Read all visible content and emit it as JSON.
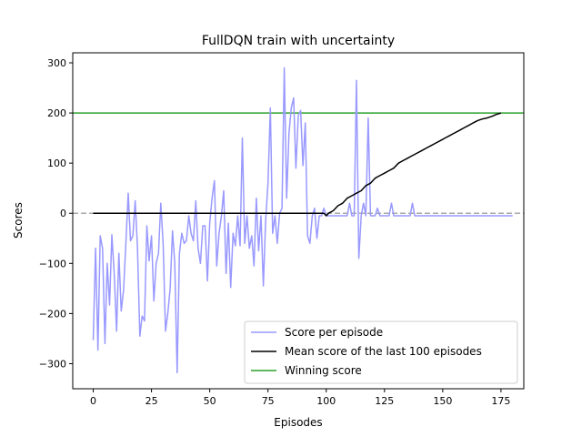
{
  "chart_data": {
    "type": "line",
    "title": "FullDQN train with uncertainty",
    "xlabel": "Episodes",
    "ylabel": "Scores",
    "xlim": [
      -8.8,
      184.8
    ],
    "ylim": [
      -350,
      320
    ],
    "xticks": [
      0,
      25,
      50,
      75,
      100,
      125,
      150,
      175
    ],
    "yticks": [
      -300,
      -200,
      -100,
      0,
      100,
      200,
      300
    ],
    "x_tick_labels": [
      "0",
      "25",
      "50",
      "75",
      "100",
      "125",
      "150",
      "175"
    ],
    "y_tick_labels": [
      "−300",
      "−200",
      "−100",
      "0",
      "100",
      "200",
      "300"
    ],
    "legend_position": "lower right",
    "series": [
      {
        "name": "Score per episode",
        "color": "#9999ff",
        "style": "solid",
        "x_start": 0,
        "values": [
          -253,
          -70,
          -273,
          -45,
          -70,
          -260,
          -100,
          -183,
          -43,
          -120,
          -235,
          -80,
          -195,
          -153,
          -60,
          40,
          -55,
          -45,
          25,
          -70,
          -245,
          -205,
          -215,
          -25,
          -95,
          -45,
          -175,
          -100,
          -80,
          20,
          -60,
          -235,
          -200,
          -150,
          -35,
          -100,
          -318,
          -80,
          -40,
          -60,
          -55,
          -5,
          -40,
          -55,
          25,
          -70,
          -100,
          -25,
          -25,
          -135,
          -20,
          30,
          65,
          -105,
          -40,
          -5,
          45,
          -120,
          -20,
          -148,
          -40,
          -65,
          -5,
          -65,
          150,
          -60,
          -5,
          -70,
          -45,
          -105,
          30,
          -75,
          -5,
          -145,
          -15,
          60,
          210,
          -40,
          -5,
          -60,
          0,
          10,
          290,
          30,
          160,
          210,
          230,
          90,
          195,
          205,
          95,
          180,
          -45,
          -60,
          -5,
          10,
          -50,
          -5,
          -5,
          10,
          -5,
          -5,
          -5,
          -5,
          -5,
          -5,
          -5,
          -5,
          -5,
          -5,
          20,
          -5,
          -5,
          265,
          -90,
          -5,
          20,
          -5,
          190,
          -5,
          -5,
          -5,
          10,
          -5,
          -5,
          -5,
          -5,
          -5,
          20,
          -5,
          -5,
          -5,
          -5,
          -5,
          -5,
          -5,
          -5,
          20,
          -5,
          -5,
          -5,
          -5,
          -5,
          -5,
          -5,
          -5,
          -5,
          -5,
          -5,
          -5,
          -5,
          -5,
          -5,
          -5,
          -5,
          -5,
          -5,
          -5,
          -5,
          -5,
          -5,
          -5,
          -5,
          -5,
          -5,
          -5,
          -5,
          -5,
          -5,
          -5,
          -5,
          -5,
          -5,
          -5,
          -5,
          -5,
          -5,
          -5,
          -5,
          -5,
          -5
        ]
      },
      {
        "name": "Mean score of the last 100 episodes",
        "color": "#000000",
        "style": "solid",
        "points": [
          [
            0,
            0
          ],
          [
            99,
            0
          ],
          [
            100,
            -5
          ],
          [
            101,
            0
          ],
          [
            103,
            5
          ],
          [
            105,
            15
          ],
          [
            107,
            20
          ],
          [
            109,
            30
          ],
          [
            111,
            35
          ],
          [
            113,
            40
          ],
          [
            115,
            45
          ],
          [
            117,
            55
          ],
          [
            119,
            60
          ],
          [
            121,
            70
          ],
          [
            123,
            75
          ],
          [
            125,
            80
          ],
          [
            127,
            85
          ],
          [
            129,
            90
          ],
          [
            131,
            100
          ],
          [
            133,
            105
          ],
          [
            135,
            110
          ],
          [
            137,
            115
          ],
          [
            139,
            120
          ],
          [
            141,
            125
          ],
          [
            143,
            130
          ],
          [
            145,
            135
          ],
          [
            147,
            140
          ],
          [
            149,
            145
          ],
          [
            151,
            150
          ],
          [
            153,
            155
          ],
          [
            155,
            160
          ],
          [
            157,
            165
          ],
          [
            159,
            170
          ],
          [
            161,
            175
          ],
          [
            163,
            180
          ],
          [
            165,
            185
          ],
          [
            167,
            188
          ],
          [
            169,
            190
          ],
          [
            171,
            193
          ],
          [
            173,
            197
          ],
          [
            175,
            200
          ]
        ]
      },
      {
        "name": "Winning score",
        "color": "#2ca02c",
        "style": "solid",
        "hline": 200
      },
      {
        "color": "#aaaaaa",
        "style": "dashed",
        "hline": 0
      }
    ]
  }
}
